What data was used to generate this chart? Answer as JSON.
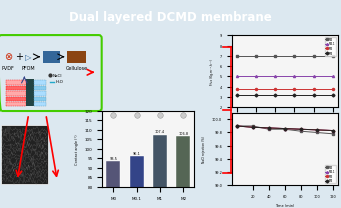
{
  "title": "Dual layered DCMD membrane",
  "title_bg": "#c8a000",
  "title_color": "#ffffff",
  "bg_color": "#dce8f0",
  "flux_times": [
    20,
    40,
    60,
    80,
    100,
    120
  ],
  "flux_series": {
    "M0": {
      "values": [
        7.0,
        7.0,
        7.0,
        7.0,
        7.0,
        7.0
      ],
      "color": "#555555",
      "marker": "s"
    },
    "M0.1": {
      "values": [
        5.0,
        5.0,
        5.0,
        5.0,
        5.0,
        5.0
      ],
      "color": "#8844aa",
      "marker": "^"
    },
    "M1": {
      "values": [
        3.8,
        3.8,
        3.8,
        3.8,
        3.8,
        3.8
      ],
      "color": "#cc3333",
      "marker": "o"
    },
    "M2": {
      "values": [
        3.2,
        3.2,
        3.2,
        3.2,
        3.2,
        3.2
      ],
      "color": "#222222",
      "marker": "D"
    }
  },
  "flux_ylabel": "Flux (Kg.m⁻².h⁻¹)",
  "flux_xlabel": "Time (min)",
  "flux_ylim": [
    2,
    9
  ],
  "rejection_times": [
    0,
    20,
    40,
    60,
    80,
    100,
    120
  ],
  "rejection_series": {
    "M0": {
      "values": [
        99.9,
        99.9,
        99.85,
        99.85,
        99.82,
        99.8,
        99.78
      ],
      "color": "#555555",
      "marker": "s"
    },
    "M0.1": {
      "values": [
        99.9,
        99.88,
        99.87,
        99.86,
        99.85,
        99.84,
        99.83
      ],
      "color": "#8844aa",
      "marker": "^"
    },
    "M1": {
      "values": [
        99.9,
        99.88,
        99.87,
        99.86,
        99.85,
        99.84,
        99.83
      ],
      "color": "#cc3333",
      "marker": "o"
    },
    "M2": {
      "values": [
        99.9,
        99.88,
        99.87,
        99.86,
        99.85,
        99.84,
        99.83
      ],
      "color": "#222222",
      "marker": "D"
    }
  },
  "rejection_ylabel": "NaCl rejection (%)",
  "rejection_xlabel": "Time (min)",
  "rejection_ylim": [
    99.0,
    100.1
  ],
  "contact_categories": [
    "M0",
    "M0.1",
    "M1",
    "M2"
  ],
  "contact_values": [
    93.5,
    96.1,
    107.4,
    106.8
  ],
  "contact_colors": [
    "#555577",
    "#334488",
    "#445566",
    "#556655"
  ],
  "contact_ylabel": "Contact angle (°)",
  "contact_ylim": [
    80,
    120
  ],
  "panel_bg": "#f5f5f5",
  "green_box_color": "#44cc00",
  "arrow_color": "#dd0000",
  "pvdf_color": "#cc2200",
  "pfom_color": "#336699",
  "cellulose_color": "#336644"
}
